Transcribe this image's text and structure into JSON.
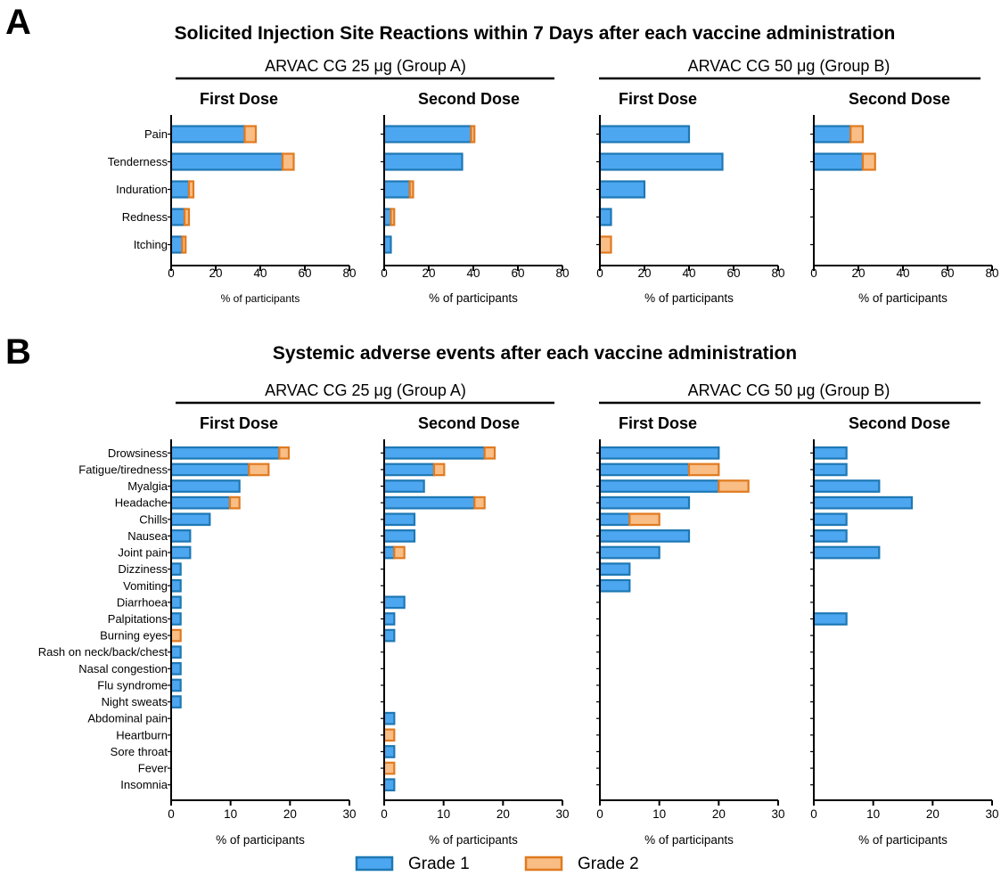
{
  "colors": {
    "grade1_fill": "#4da6f0",
    "grade1_stroke": "#1e78b4",
    "grade2_fill": "#f9bd86",
    "grade2_stroke": "#e07a1f"
  },
  "panel_a": {
    "letter": "A",
    "title": "Solicited Injection Site Reactions within 7 Days after each vaccine administration",
    "group_a_label": "ARVAC CG 25 μg (Group A)",
    "group_b_label": "ARVAC CG 50 μg (Group B)",
    "dose_labels": [
      "First Dose",
      "Second Dose",
      "First Dose",
      "Second Dose"
    ],
    "xlabels": [
      "% of participants",
      "% of participants",
      "% of participants",
      "% of participants"
    ]
  },
  "panel_b": {
    "letter": "B",
    "title": "Systemic adverse events after each vaccine administration",
    "group_a_label": "ARVAC CG 25 μg (Group A)",
    "group_b_label": "ARVAC CG 50 μg (Group B)",
    "dose_labels": [
      "First Dose",
      "Second Dose",
      "First Dose",
      "Second Dose"
    ],
    "xlabels": [
      "% of participants",
      "% of participants",
      "% of participants",
      "% of participants"
    ]
  },
  "legend": {
    "grade1": "Grade 1",
    "grade2": "Grade 2"
  },
  "chart_data": [
    {
      "type": "bar",
      "orientation": "horizontal",
      "stacked": true,
      "panel": "A",
      "categories": [
        "Pain",
        "Tenderness",
        "Induration",
        "Redness",
        "Itching"
      ],
      "xlim": [
        0,
        80
      ],
      "xticks": [
        0,
        20,
        40,
        60,
        80
      ],
      "subplots": [
        {
          "group": "ARVAC CG 25 μg (Group A)",
          "dose": "First Dose",
          "series": [
            {
              "name": "Grade 1",
              "values": [
                33,
                50,
                8,
                6,
                5
              ]
            },
            {
              "name": "Grade 2",
              "values": [
                5,
                5,
                2,
                2,
                1.5
              ]
            }
          ]
        },
        {
          "group": "ARVAC CG 25 μg (Group A)",
          "dose": "Second Dose",
          "series": [
            {
              "name": "Grade 1",
              "values": [
                39,
                35,
                11.5,
                3,
                3
              ]
            },
            {
              "name": "Grade 2",
              "values": [
                1.5,
                0,
                1.5,
                1.5,
                0
              ]
            }
          ]
        },
        {
          "group": "ARVAC CG 50 μg (Group B)",
          "dose": "First Dose",
          "series": [
            {
              "name": "Grade 1",
              "values": [
                40,
                55,
                20,
                5,
                0
              ]
            },
            {
              "name": "Grade 2",
              "values": [
                0,
                0,
                0,
                0,
                5
              ]
            }
          ]
        },
        {
          "group": "ARVAC CG 50 μg (Group B)",
          "dose": "Second Dose",
          "series": [
            {
              "name": "Grade 1",
              "values": [
                16.5,
                22,
                0,
                0,
                0
              ]
            },
            {
              "name": "Grade 2",
              "values": [
                5.5,
                5.5,
                0,
                0,
                0
              ]
            }
          ]
        }
      ]
    },
    {
      "type": "bar",
      "orientation": "horizontal",
      "stacked": true,
      "panel": "B",
      "categories": [
        "Drowsiness",
        "Fatigue/tiredness",
        "Myalgia",
        "Headache",
        "Chills",
        "Nausea",
        "Joint pain",
        "Dizziness",
        "Vomiting",
        "Diarrhoea",
        "Palpitations",
        "Burning eyes",
        "Rash on neck/back/chest",
        "Nasal congestion",
        "Flu syndrome",
        "Night sweats",
        "Abdominal pain",
        "Heartburn",
        "Sore throat",
        "Fever",
        "Insomnia"
      ],
      "xlim": [
        0,
        30
      ],
      "xticks": [
        0,
        10,
        20,
        30
      ],
      "subplots": [
        {
          "group": "ARVAC CG 25 μg (Group A)",
          "dose": "First Dose",
          "series": [
            {
              "name": "Grade 1",
              "values": [
                18.2,
                13.1,
                11.5,
                9.9,
                6.5,
                3.2,
                3.2,
                1.6,
                1.6,
                1.6,
                1.6,
                0,
                1.6,
                1.6,
                1.6,
                1.6,
                0,
                0,
                0,
                0,
                0
              ]
            },
            {
              "name": "Grade 2",
              "values": [
                1.6,
                3.3,
                0,
                1.6,
                0,
                0,
                0,
                0,
                0,
                0,
                0,
                1.6,
                0,
                0,
                0,
                0,
                0,
                0,
                0,
                0,
                0
              ]
            }
          ]
        },
        {
          "group": "ARVAC CG 25 μg (Group A)",
          "dose": "Second Dose",
          "series": [
            {
              "name": "Grade 1",
              "values": [
                16.9,
                8.4,
                6.7,
                15.2,
                5.1,
                5.1,
                1.7,
                0,
                0,
                3.4,
                1.7,
                1.7,
                0,
                0,
                0,
                0,
                1.7,
                0,
                1.7,
                0,
                1.7
              ]
            },
            {
              "name": "Grade 2",
              "values": [
                1.7,
                1.7,
                0,
                1.7,
                0,
                0,
                1.7,
                0,
                0,
                0,
                0,
                0,
                0,
                0,
                0,
                0,
                0,
                1.7,
                0,
                1.7,
                0
              ]
            }
          ]
        },
        {
          "group": "ARVAC CG 50 μg (Group B)",
          "dose": "First Dose",
          "series": [
            {
              "name": "Grade 1",
              "values": [
                20,
                15,
                20,
                15,
                5,
                15,
                10,
                5,
                5,
                0,
                0,
                0,
                0,
                0,
                0,
                0,
                0,
                0,
                0,
                0,
                0
              ]
            },
            {
              "name": "Grade 2",
              "values": [
                0,
                5,
                5,
                0,
                5,
                0,
                0,
                0,
                0,
                0,
                0,
                0,
                0,
                0,
                0,
                0,
                0,
                0,
                0,
                0,
                0
              ]
            }
          ]
        },
        {
          "group": "ARVAC CG 50 μg (Group B)",
          "dose": "Second Dose",
          "series": [
            {
              "name": "Grade 1",
              "values": [
                5.5,
                5.5,
                11,
                16.5,
                5.5,
                5.5,
                11,
                0,
                0,
                0,
                5.5,
                0,
                0,
                0,
                0,
                0,
                0,
                0,
                0,
                0,
                0
              ]
            },
            {
              "name": "Grade 2",
              "values": [
                0,
                0,
                0,
                0,
                0,
                0,
                0,
                0,
                0,
                0,
                0,
                0,
                0,
                0,
                0,
                0,
                0,
                0,
                0,
                0,
                0
              ]
            }
          ]
        }
      ]
    }
  ]
}
